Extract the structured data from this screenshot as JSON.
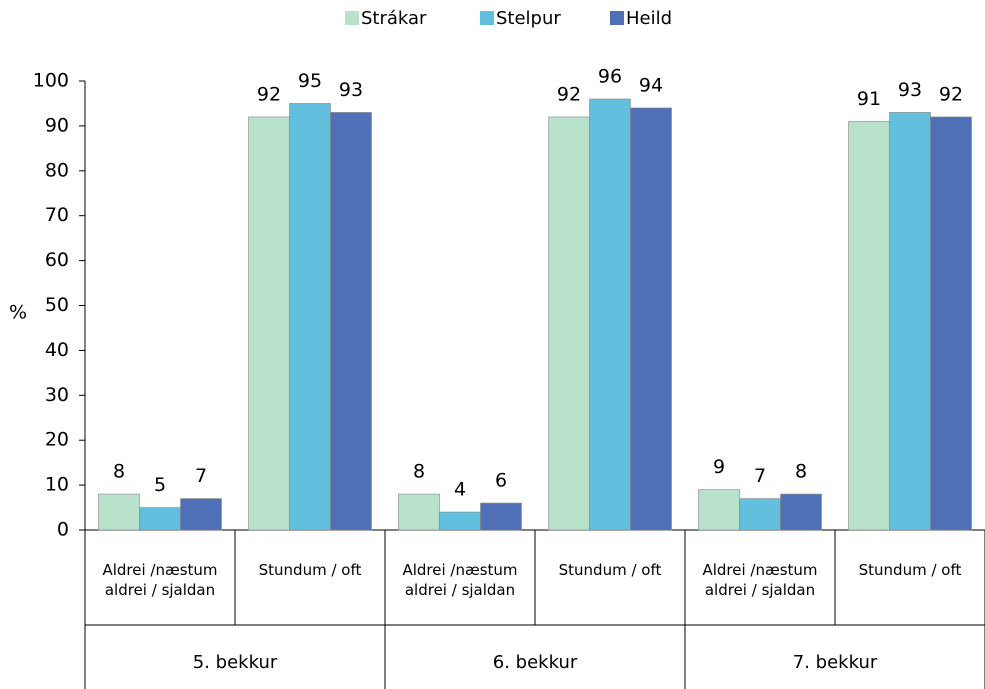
{
  "chart_data": {
    "type": "bar",
    "y_label": "%",
    "categories": [
      "Aldrei /næstum aldrei / sjaldan",
      "Stundum / oft",
      "Aldrei /næstum aldrei / sjaldan",
      "Stundum / oft",
      "Aldrei /næstum aldrei / sjaldan",
      "Stundum / oft"
    ],
    "groups": [
      "5. bekkur",
      "6. bekkur",
      "7. bekkur"
    ],
    "series": [
      {
        "name": "Strákar",
        "color": "#b9e2cd",
        "values": [
          8,
          92,
          8,
          92,
          9,
          91
        ]
      },
      {
        "name": "Stelpur",
        "color": "#62c0de",
        "values": [
          5,
          95,
          4,
          96,
          7,
          93
        ]
      },
      {
        "name": "Heild",
        "color": "#4f70b6",
        "values": [
          7,
          93,
          6,
          94,
          8,
          92
        ]
      }
    ],
    "ylim": [
      0,
      100
    ],
    "yticks": [
      0,
      10,
      20,
      30,
      40,
      50,
      60,
      70,
      80,
      90,
      100
    ],
    "grid": false,
    "legend": "top"
  }
}
